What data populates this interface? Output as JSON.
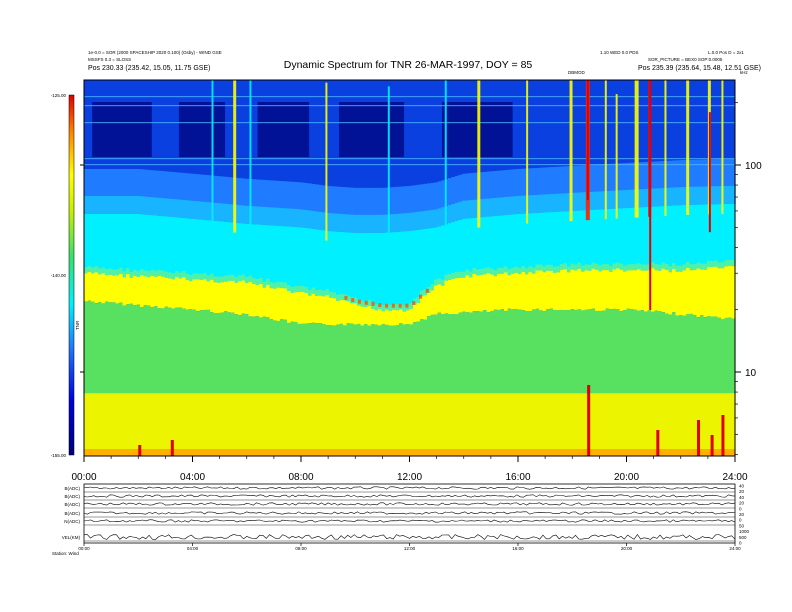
{
  "header": {
    "title": "Dynamic Spectrum for TNR 26-MAR-1997, DOY = 85",
    "left_line1": "1e-0.0 = SOR (2000 SPACESHIP 2020 0.100) (Osby) - WIND GSE",
    "left_line2": "MSSFS 0.3 = SLOSS",
    "left_line3": "Pos    230.33 (235.42, 15.05, 11.75 GSE)",
    "mid_right": "1.10 WED 0.0 PDS",
    "right_line1": "L.0.0 Pos D = 2x1",
    "right_line2": "SOR_PICTURE = BEX0 SOP:0.0005",
    "right_line3": "Pos    235.39 (235.64, 15.48, 12.51 GSE)",
    "event_label": "DBMOD",
    "khz_label": "kHz"
  },
  "colorbar": {
    "top_label": "-125.00",
    "mid_label": "-140.00",
    "bottom_label": "-155.00",
    "unit_label": "TNR"
  },
  "chart_data": {
    "type": "heatmap",
    "title": "Dynamic Spectrum for TNR 26-MAR-1997, DOY = 85",
    "xlabel": "",
    "ylabel": "kHz",
    "x_ticks": [
      "00:00",
      "04:00",
      "08:00",
      "12:00",
      "16:00",
      "20:00",
      "24:00"
    ],
    "x_range_hours": [
      0,
      24
    ],
    "y_ticks": [
      "100",
      "10"
    ],
    "y_scale": "log",
    "colorbar_range": [
      -155,
      -125
    ],
    "colorscale": [
      "#00007a",
      "#0000e0",
      "#1f7bff",
      "#00f0ff",
      "#38e070",
      "#c8f000",
      "#ffff00",
      "#ff8000",
      "#e00000"
    ],
    "features": [
      {
        "name": "cyan band upper edge",
        "hours": [
          0,
          2,
          4,
          6,
          8,
          9,
          10,
          11,
          12,
          13,
          14,
          16,
          18,
          20,
          22,
          24
        ],
        "khz": [
          58,
          58,
          55,
          52,
          50,
          48,
          47,
          47,
          48,
          50,
          55,
          58,
          60,
          62,
          64,
          65
        ]
      },
      {
        "name": "yellow band upper edge",
        "hours": [
          0,
          2,
          4,
          6,
          8,
          9,
          10,
          11,
          12,
          13,
          14,
          16,
          18,
          20,
          22,
          24
        ],
        "khz": [
          30,
          29,
          28,
          27,
          24,
          23,
          21,
          20,
          20,
          26,
          29,
          30,
          31,
          31,
          31,
          32
        ]
      },
      {
        "name": "green band upper edge",
        "hours": [
          0,
          2,
          4,
          6,
          8,
          12,
          13,
          16,
          20,
          22,
          24
        ],
        "khz": [
          22,
          21,
          20,
          19,
          17,
          17,
          19,
          20,
          20,
          19,
          18
        ]
      }
    ]
  },
  "bottom_panel": {
    "row_labels": [
      "B(ADC)",
      "B(ADC)",
      "B(ADC)",
      "B(ADC)",
      "N(ADC)",
      "VEL(KM)"
    ],
    "right_ticks": [
      "40",
      "20",
      "40",
      "20",
      "0",
      "20",
      "0",
      "50",
      "1000",
      "500",
      "0"
    ],
    "x_ticks": [
      "00:00",
      "04:00",
      "08:00",
      "12:00",
      "16:00",
      "20:00",
      "24:00"
    ],
    "footer_label": "Station: Wind"
  }
}
